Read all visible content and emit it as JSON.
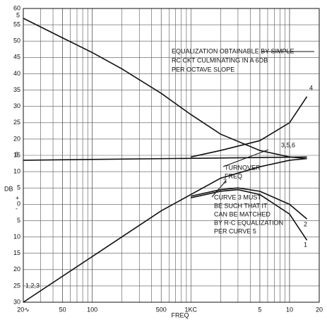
{
  "chart_data": {
    "type": "line",
    "xscale": "log",
    "grid": true,
    "color": "#111111",
    "xlabel": "FREQ",
    "ylabel": "DB",
    "xlim": [
      20,
      20000
    ],
    "xticks": [
      {
        "value": 20,
        "label": "20∿"
      },
      50,
      100,
      500,
      {
        "value": 1000,
        "label": "1KC"
      },
      {
        "value": 5000,
        "label": "5"
      },
      {
        "value": 10000,
        "label": "10"
      },
      {
        "value": 20000,
        "label": "20"
      }
    ],
    "ylim": [
      -30,
      60
    ],
    "yticks": [
      60,
      55,
      50,
      45,
      40,
      35,
      30,
      25,
      20,
      15,
      10,
      5,
      0,
      {
        "value": -5,
        "label": "5"
      },
      {
        "value": -10,
        "label": "10"
      },
      {
        "value": -15,
        "label": "15"
      },
      {
        "value": -20,
        "label": "20"
      },
      {
        "value": -25,
        "label": "25"
      },
      {
        "value": -30,
        "label": "30"
      }
    ],
    "series": [
      {
        "name": "5",
        "color": "#111111",
        "x": [
          20,
          50,
          100,
          200,
          500,
          1000,
          2000,
          5000,
          10000,
          15000
        ],
        "values": [
          57,
          51,
          46.5,
          41.5,
          34,
          27.5,
          21.5,
          16.5,
          14.5,
          14
        ]
      },
      {
        "name": "6",
        "color": "#111111",
        "x": [
          20,
          15000
        ],
        "values": [
          13.5,
          14.5
        ]
      },
      {
        "name": "4",
        "color": "#111111",
        "x": [
          1000,
          2000,
          5000,
          10000,
          15000
        ],
        "values": [
          14.5,
          16.5,
          19.5,
          25,
          33
        ]
      },
      {
        "name": "3",
        "color": "#111111",
        "x": [
          20,
          100,
          500,
          1000,
          2000,
          5000,
          10000,
          15000
        ],
        "values": [
          -30,
          -16,
          -2,
          3,
          8,
          11.5,
          13.5,
          14
        ]
      },
      {
        "name": "2",
        "color": "#111111",
        "x": [
          1000,
          2000,
          3000,
          5000,
          10000,
          15000
        ],
        "values": [
          2.5,
          4.5,
          5,
          4,
          0,
          -4.5
        ]
      },
      {
        "name": "1",
        "color": "#111111",
        "x": [
          1000,
          2000,
          3000,
          5000,
          10000,
          15000
        ],
        "values": [
          2,
          4,
          4.5,
          3,
          -3,
          -11
        ]
      }
    ],
    "annotations": [
      "EQUALIZATION OBTAINABLE BY SIMPLE",
      "RC CKT CULMINATING IN A 6DB",
      "PER OCTAVE SLOPE",
      "TURNOVER",
      "FREQ",
      "CURVE 3 MUST",
      "BE SUCH THAT IT",
      "CAN BE MATCHED",
      "BY R-C EQUALIZATION",
      "PER CURVE 5",
      "3,5,6",
      "1,2,3",
      "+",
      "-"
    ]
  }
}
